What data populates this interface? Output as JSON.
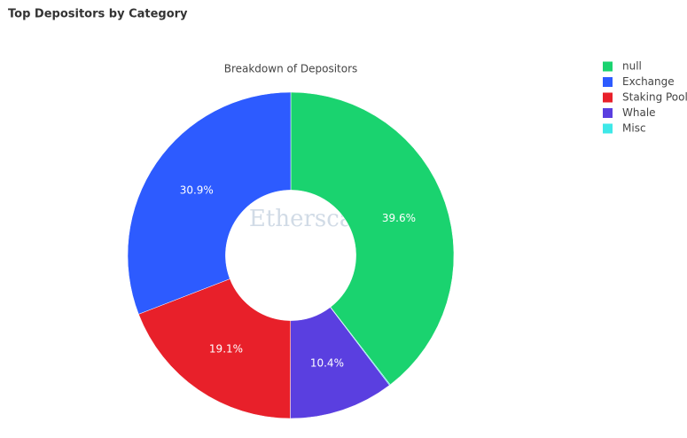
{
  "page_title": "Top Depositors by Category",
  "watermark": "Etherscan",
  "chart_data": {
    "type": "pie",
    "title": "Breakdown of Depositors",
    "categories": [
      "null",
      "Misc",
      "Whale",
      "Staking Pool",
      "Exchange"
    ],
    "legend_order": [
      0,
      4,
      3,
      2,
      1
    ],
    "values": [
      39.6,
      0.1,
      10.4,
      19.1,
      30.9
    ],
    "value_labels": [
      "39.6%",
      null,
      "10.4%",
      "19.1%",
      "30.9%"
    ],
    "colors": [
      "#1ad36f",
      "#3ee8e8",
      "#5a3fe0",
      "#e8202a",
      "#2d5bff"
    ],
    "hole": 0.4,
    "legend": "top-right"
  }
}
